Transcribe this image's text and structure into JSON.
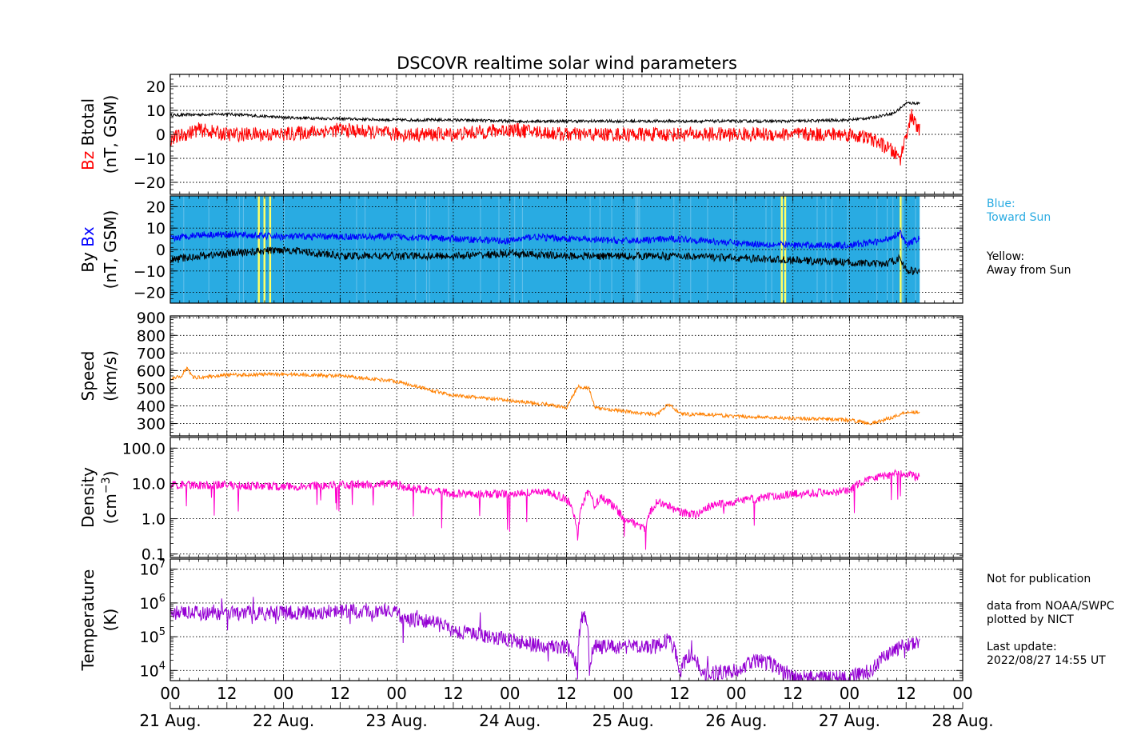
{
  "title": "DSCOVR realtime solar wind parameters",
  "chart_data": {
    "type": "line",
    "time_range": [
      "2022-08-21 00:00",
      "2022-08-28 00:00"
    ],
    "xticks": [
      "00",
      "12",
      "00",
      "12",
      "00",
      "12",
      "00",
      "12",
      "00",
      "12",
      "00",
      "12",
      "00",
      "12",
      "00"
    ],
    "xdays": [
      "21 Aug.",
      "22 Aug.",
      "23 Aug.",
      "24 Aug.",
      "25 Aug.",
      "26 Aug.",
      "27 Aug.",
      "28 Aug."
    ],
    "data_end": "2022-08-27 14:55",
    "grid": true,
    "panels": [
      {
        "id": "btotal-bz",
        "ylabel": {
          "line1": [
            {
              "text": "Bz",
              "color": "#ff0000"
            },
            {
              "text": "Btotal",
              "color": "#000000"
            }
          ],
          "line2": "(nT, GSM)"
        },
        "scale": "linear",
        "ylim": [
          -25,
          25
        ],
        "yticks": [
          -20,
          -10,
          0,
          10,
          20
        ],
        "yticklabels": [
          "−20",
          "−10",
          "0",
          "10",
          "20"
        ],
        "series": [
          {
            "key": "Btotal",
            "color": "#000000",
            "x": [
              0,
              0.5,
              1,
              1.5,
              2,
              2.5,
              3,
              3.5,
              4,
              4.5,
              5,
              5.5,
              6,
              6.2,
              6.4,
              6.5,
              6.6
            ],
            "y": [
              8,
              8.5,
              7,
              6.5,
              6,
              6,
              5.5,
              5.5,
              5.5,
              5.5,
              5.5,
              5.5,
              6,
              7,
              9,
              13,
              13
            ]
          },
          {
            "key": "Bz",
            "color": "#ff0000",
            "x": [
              0,
              0.25,
              0.5,
              0.75,
              1,
              1.5,
              2,
              2.5,
              3,
              3.5,
              4,
              4.5,
              5,
              5.5,
              6,
              6.2,
              6.35,
              6.45,
              6.5,
              6.55,
              6.6
            ],
            "y": [
              -2,
              2,
              0,
              0,
              0,
              2,
              0,
              0,
              2,
              0,
              0,
              0,
              0,
              0,
              0,
              -2,
              -6,
              -10,
              0,
              8,
              2
            ]
          }
        ]
      },
      {
        "id": "by-bx",
        "ylabel": {
          "line1": [
            {
              "text": "By",
              "color": "#000000"
            },
            {
              "text": "Bx",
              "color": "#0000ff"
            }
          ],
          "line2": "(nT, GSM)"
        },
        "scale": "linear",
        "ylim": [
          -25,
          25
        ],
        "yticks": [
          -20,
          -10,
          0,
          10,
          20
        ],
        "yticklabels": [
          "−20",
          "−10",
          "0",
          "10",
          "20"
        ],
        "background": {
          "toward_color": "#29abe2",
          "away_color": "#ffff66",
          "away_times": [
            0.78,
            0.83,
            0.88,
            5.4,
            5.43,
            6.45
          ]
        },
        "series": [
          {
            "key": "Bx",
            "color": "#0000ff",
            "x": [
              0,
              0.25,
              0.5,
              1,
              1.5,
              2,
              2.5,
              3,
              3.2,
              3.5,
              4,
              4.5,
              5,
              5.5,
              6,
              6.3,
              6.45,
              6.5,
              6.6
            ],
            "y": [
              5,
              7,
              7,
              6,
              6,
              6,
              5,
              4,
              6,
              5,
              4,
              5,
              3,
              2,
              2,
              4,
              8,
              2,
              5
            ]
          },
          {
            "key": "By",
            "color": "#000000",
            "x": [
              0,
              0.25,
              0.5,
              1,
              1.5,
              2,
              2.5,
              3,
              3.5,
              4,
              4.5,
              5,
              5.5,
              6,
              6.3,
              6.45,
              6.5,
              6.6
            ],
            "y": [
              -5,
              -3,
              -2,
              0,
              -3,
              -3,
              -3,
              -2,
              -3,
              -3,
              -3,
              -4,
              -5,
              -6,
              -7,
              -4,
              -10,
              -10
            ]
          }
        ]
      },
      {
        "id": "speed",
        "ylabel": {
          "line1": [
            {
              "text": "Speed",
              "color": "#000000"
            }
          ],
          "line2": "(km/s)"
        },
        "scale": "linear",
        "ylim": [
          230,
          910
        ],
        "yticks": [
          300,
          400,
          500,
          600,
          700,
          800,
          900
        ],
        "yticklabels": [
          "300",
          "400",
          "500",
          "600",
          "700",
          "800",
          "900"
        ],
        "series": [
          {
            "key": "Speed",
            "color": "#ff8000",
            "x": [
              0,
              0.1,
              0.15,
              0.2,
              0.5,
              1,
              1.5,
              2,
              2.3,
              2.5,
              3,
              3.3,
              3.5,
              3.6,
              3.7,
              3.75,
              4,
              4.3,
              4.4,
              4.5,
              4.6,
              4.65,
              5,
              5.5,
              6,
              6.2,
              6.4,
              6.5,
              6.6
            ],
            "y": [
              550,
              570,
              620,
              560,
              575,
              580,
              570,
              540,
              490,
              460,
              430,
              410,
              390,
              510,
              500,
              390,
              370,
              350,
              410,
              360,
              350,
              355,
              340,
              330,
              320,
              300,
              340,
              365,
              365
            ]
          }
        ]
      },
      {
        "id": "density",
        "ylabel": {
          "line1": [
            {
              "text": "Density",
              "color": "#000000"
            }
          ],
          "line2": "(cm",
          "line2_sup": "−3",
          "line2_end": ")"
        },
        "scale": "log",
        "ylim": [
          0.08,
          200
        ],
        "yticks": [
          0.1,
          1,
          10,
          100
        ],
        "yticklabels": [
          "0.1",
          "1.0",
          "10.0",
          "100.0"
        ],
        "series": [
          {
            "key": "Density",
            "color": "#ff00cc",
            "x": [
              0,
              0.5,
              1,
              1.5,
              2,
              2.05,
              2.5,
              3,
              3.3,
              3.5,
              3.6,
              3.7,
              3.75,
              3.8,
              4,
              4.2,
              4.3,
              4.5,
              4.65,
              4.8,
              5,
              5.5,
              6,
              6.2,
              6.5,
              6.6
            ],
            "y": [
              9,
              9,
              8,
              9,
              9.5,
              8,
              5,
              5,
              6,
              3.5,
              0.15,
              6,
              2,
              4,
              1,
              0.5,
              3,
              1.5,
              1.3,
              2.5,
              3,
              5,
              6,
              15,
              20,
              15
            ]
          }
        ]
      },
      {
        "id": "temperature",
        "ylabel": {
          "line1": [
            {
              "text": "Temperature",
              "color": "#000000"
            }
          ],
          "line2": "(K)"
        },
        "scale": "log",
        "ylim": [
          5000,
          20000000
        ],
        "yticks": [
          10000,
          100000,
          1000000,
          10000000
        ],
        "yticklabels": [
          {
            "base": "10",
            "exp": "4"
          },
          {
            "base": "10",
            "exp": "5"
          },
          {
            "base": "10",
            "exp": "6"
          },
          {
            "base": "10",
            "exp": "7"
          }
        ],
        "series": [
          {
            "key": "Temperature",
            "color": "#9400d3",
            "x": [
              0,
              0.5,
              1,
              1.5,
              2,
              2.05,
              2.3,
              2.5,
              2.8,
              3,
              3.3,
              3.5,
              3.6,
              3.65,
              3.7,
              3.75,
              4,
              4.3,
              4.4,
              4.5,
              4.6,
              4.7,
              5,
              5.2,
              5.5,
              6,
              6.2,
              6.4,
              6.6
            ],
            "y": [
              500000,
              500000,
              500000,
              550000,
              600000,
              300000,
              300000,
              150000,
              100000,
              80000,
              50000,
              50000,
              8000,
              500000,
              8000,
              50000,
              50000,
              50000,
              80000,
              8000,
              30000,
              8000,
              10000,
              20000,
              6000,
              6000,
              10000,
              40000,
              70000
            ]
          }
        ]
      }
    ]
  },
  "legend_notes": {
    "blue_line1": "Blue:",
    "blue_line2": "Toward Sun",
    "blue_color": "#29abe2",
    "yellow_line1": "Yellow:",
    "yellow_line2": "Away from Sun"
  },
  "footer_notes": {
    "line1": "Not for publication",
    "line2": "data from NOAA/SWPC",
    "line3": "plotted by NICT",
    "line4": "Last update:",
    "line5": "2022/08/27 14:55 UT"
  }
}
